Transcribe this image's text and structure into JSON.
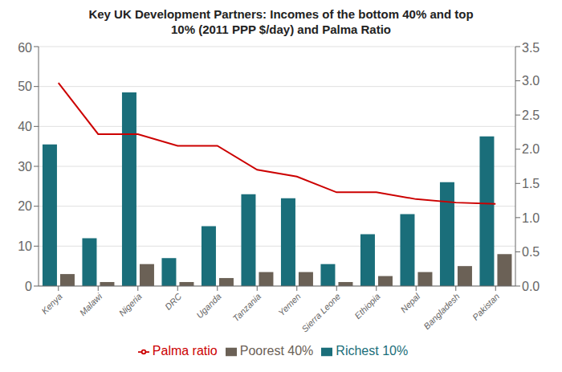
{
  "chart_data": {
    "type": "bar",
    "title": "Key UK Development Partners: Incomes of the bottom 40% and top\n10% (2011 PPP $/day) and Palma Ratio",
    "categories": [
      "Kenya",
      "Malawi",
      "Nigeria",
      "DRC",
      "Uganda",
      "Tanzania",
      "Yemen",
      "Sierra Leone",
      "Ethiopia",
      "Nepal",
      "Bangladesh",
      "Pakistan"
    ],
    "series": [
      {
        "name": "Richest 10%",
        "color": "#1a6e7a",
        "values": [
          35.5,
          12.0,
          48.5,
          7.0,
          15.0,
          23.0,
          22.0,
          5.5,
          13.0,
          18.0,
          26.0,
          37.5
        ]
      },
      {
        "name": "Poorest 40%",
        "color": "#6b6156",
        "values": [
          3.0,
          1.0,
          5.5,
          1.0,
          2.0,
          3.5,
          3.5,
          1.0,
          2.5,
          3.5,
          5.0,
          8.0
        ]
      },
      {
        "name": "Palma ratio",
        "color": "#cc0000",
        "type": "line",
        "axis": "y2",
        "values": [
          2.97,
          2.22,
          2.22,
          2.05,
          2.05,
          1.7,
          1.6,
          1.37,
          1.37,
          1.27,
          1.22,
          1.2
        ]
      }
    ],
    "ylim": [
      0,
      60
    ],
    "yticks": [
      0,
      10,
      20,
      30,
      40,
      50,
      60
    ],
    "y2lim": [
      0,
      3.5
    ],
    "y2ticks": [
      {
        "value": 0,
        "label": "0.0"
      },
      0.5,
      {
        "value": 1,
        "label": "1.0"
      },
      1.5,
      {
        "value": 2,
        "label": "2.0"
      },
      2.5,
      {
        "value": 3,
        "label": "3.0"
      },
      3.5
    ],
    "grid": true,
    "legend": "bottom"
  }
}
